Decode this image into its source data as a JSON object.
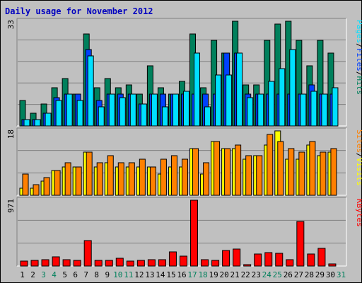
{
  "title": "Daily usage for November 2012",
  "colors": {
    "background": "#c0c0c0",
    "title": "#0000c0",
    "hits": "#00805c",
    "files": "#0040ff",
    "pages": "#00e0ff",
    "visits": "#ffff00",
    "sites": "#ff8000",
    "kbytes": "#ff0000",
    "weekend_day": "#00805c",
    "weekday": "#000000"
  },
  "chart_data": [
    {
      "type": "bar",
      "panel": "hits-files-pages",
      "ymax_label": "33",
      "ylim": [
        0,
        33
      ],
      "legend": [
        {
          "key": "pages",
          "label": "Pages"
        },
        {
          "key": "sep1",
          "label": "/"
        },
        {
          "key": "files",
          "label": "Files"
        },
        {
          "key": "sep2",
          "label": "/"
        },
        {
          "key": "hits",
          "label": "Hits"
        }
      ],
      "categories": [
        "1",
        "2",
        "3",
        "4",
        "5",
        "6",
        "7",
        "8",
        "9",
        "10",
        "11",
        "12",
        "13",
        "14",
        "15",
        "16",
        "17",
        "18",
        "19",
        "20",
        "21",
        "22",
        "23",
        "24",
        "25",
        "26",
        "27",
        "28",
        "29",
        "30",
        "31"
      ],
      "series": [
        {
          "key": "hits",
          "values": [
            8,
            4,
            7,
            12,
            15,
            10,
            29,
            12,
            15,
            12,
            13,
            10,
            19,
            12,
            10,
            14,
            29,
            12,
            27,
            23,
            33,
            13,
            13,
            27,
            32,
            33,
            27,
            19,
            27,
            23,
            null
          ]
        },
        {
          "key": "files",
          "values": [
            2,
            2,
            4,
            9,
            10,
            10,
            24,
            8,
            10,
            10,
            10,
            7,
            10,
            10,
            10,
            10,
            10,
            10,
            10,
            23,
            23,
            10,
            10,
            10,
            10,
            10,
            10,
            13,
            10,
            10,
            null
          ]
        },
        {
          "key": "pages",
          "values": [
            2,
            2,
            4,
            8,
            10,
            8,
            22,
            6,
            10,
            9,
            10,
            7,
            10,
            6,
            10,
            11,
            23,
            6,
            16,
            16,
            23,
            9,
            10,
            14,
            18,
            24,
            10,
            11,
            10,
            12,
            null
          ]
        }
      ]
    },
    {
      "type": "bar",
      "panel": "visits-sites",
      "ymax_label": "18",
      "ylim": [
        0,
        18
      ],
      "legend": [
        {
          "key": "sites",
          "label": "Sites"
        },
        {
          "key": "sep1",
          "label": "/"
        },
        {
          "key": "visits",
          "label": "Visits"
        }
      ],
      "categories": [
        "1",
        "2",
        "3",
        "4",
        "5",
        "6",
        "7",
        "8",
        "9",
        "10",
        "11",
        "12",
        "13",
        "14",
        "15",
        "16",
        "17",
        "18",
        "19",
        "20",
        "21",
        "22",
        "23",
        "24",
        "25",
        "26",
        "27",
        "28",
        "29",
        "30",
        "31"
      ],
      "series": [
        {
          "key": "visits",
          "values": [
            2,
            2,
            4,
            7,
            8,
            8,
            12,
            8,
            9,
            8,
            8,
            8,
            8,
            6,
            8,
            8,
            13,
            6,
            15,
            13,
            13,
            10,
            11,
            14,
            18,
            10,
            10,
            14,
            11,
            12,
            null
          ]
        },
        {
          "key": "sites",
          "values": [
            6,
            3,
            5,
            7,
            9,
            8,
            12,
            9,
            11,
            9,
            9,
            10,
            8,
            10,
            11,
            10,
            13,
            9,
            15,
            13,
            14,
            11,
            11,
            17,
            15,
            13,
            12,
            15,
            12,
            13,
            null
          ]
        }
      ]
    },
    {
      "type": "bar",
      "panel": "kbytes",
      "ymax_label": "971",
      "ylim": [
        0,
        971
      ],
      "legend": [
        {
          "key": "kbytes",
          "label": "KBytes"
        }
      ],
      "categories": [
        "1",
        "2",
        "3",
        "4",
        "5",
        "6",
        "7",
        "8",
        "9",
        "10",
        "11",
        "12",
        "13",
        "14",
        "15",
        "16",
        "17",
        "18",
        "19",
        "20",
        "21",
        "22",
        "23",
        "24",
        "25",
        "26",
        "27",
        "28",
        "29",
        "30",
        "31"
      ],
      "series": [
        {
          "key": "kbytes",
          "values": [
            75,
            85,
            90,
            140,
            90,
            85,
            380,
            85,
            85,
            110,
            75,
            80,
            95,
            90,
            210,
            150,
            971,
            90,
            85,
            230,
            255,
            25,
            180,
            195,
            190,
            95,
            660,
            175,
            260,
            35,
            null
          ]
        }
      ]
    }
  ],
  "weekend_days": [
    3,
    4,
    10,
    11,
    17,
    18,
    24,
    25,
    31
  ]
}
